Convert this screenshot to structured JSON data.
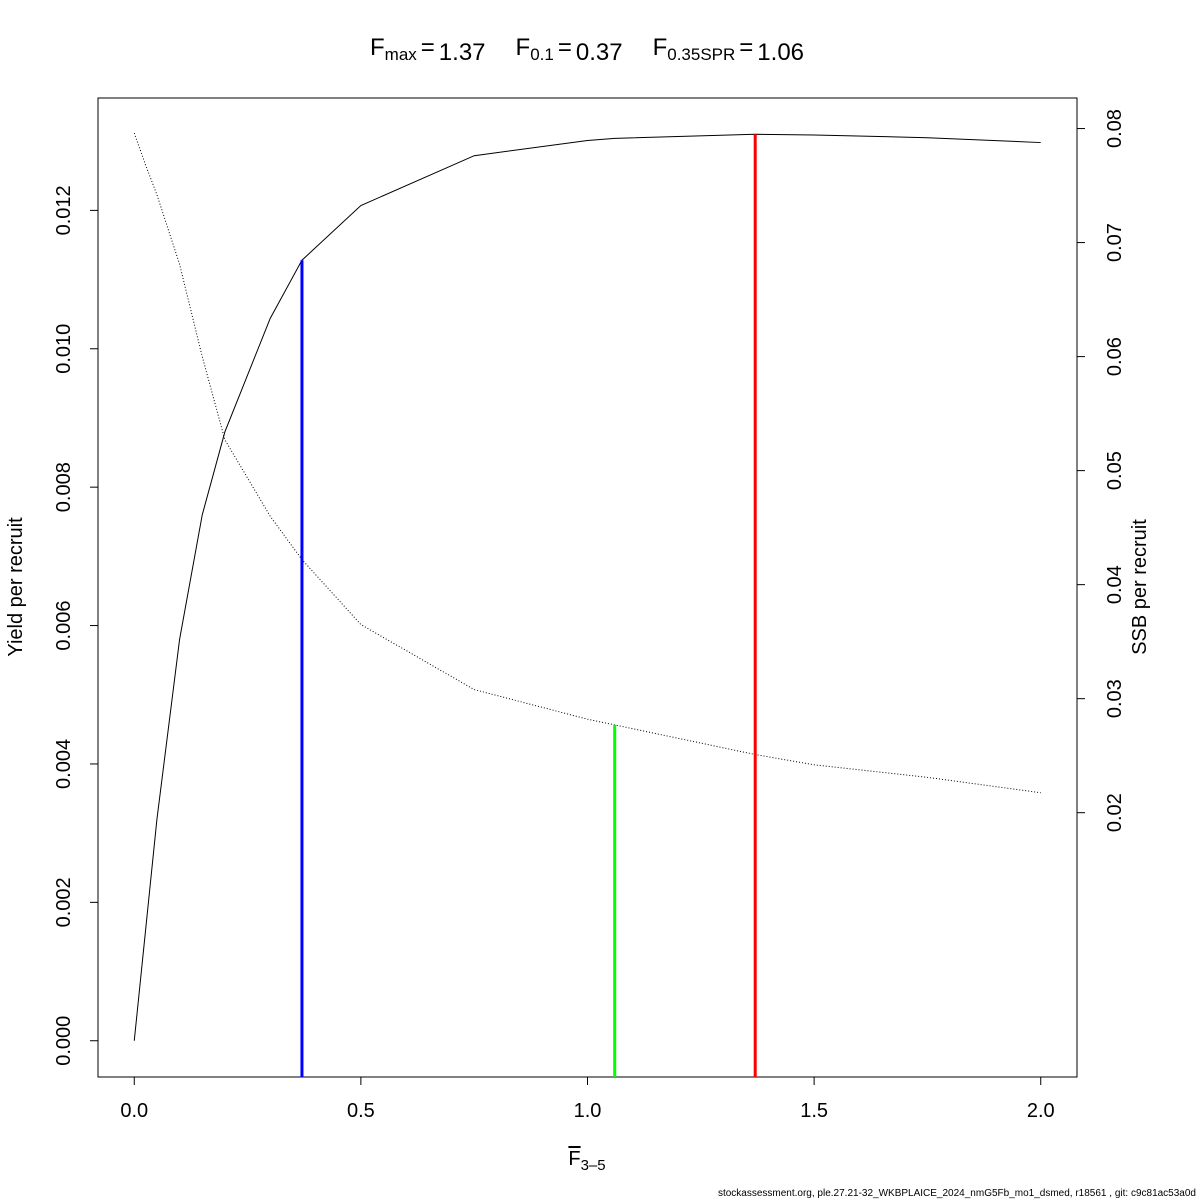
{
  "chart_data": {
    "type": "line",
    "reference_lines": [
      {
        "symbol": "F",
        "subscript": "max",
        "sign": "=",
        "x": 1.37,
        "y": 0.0131,
        "axis": "y",
        "color": "#ff0000"
      },
      {
        "symbol": "F",
        "subscript": "0.1",
        "sign": "=",
        "x": 0.37,
        "y": 0.01128,
        "axis": "y",
        "color": "#0000ff"
      },
      {
        "symbol": "F",
        "subscript": "0.35SPR",
        "sign": "=",
        "x": 1.06,
        "y": 0.0277,
        "axis": "y2",
        "color": "#00ff00"
      }
    ],
    "xlabel": {
      "text": "F",
      "subscript": "3–5"
    },
    "ylabel": "Yield per recruit",
    "y2label": "SSB per recruit",
    "x": [
      0,
      0.025,
      0.05,
      0.1,
      0.15,
      0.2,
      0.3,
      0.37,
      0.5,
      0.75,
      1.0,
      1.06,
      1.37,
      1.5,
      1.75,
      2.0
    ],
    "series": [
      {
        "name": "Yield per recruit",
        "color": "#000000",
        "dash": "solid",
        "axis": "y",
        "values": [
          0,
          0.0016,
          0.0032,
          0.0058,
          0.0076,
          0.0088,
          0.01044,
          0.01128,
          0.01207,
          0.01279,
          0.01301,
          0.01304,
          0.0131,
          0.01309,
          0.01305,
          0.01298
        ]
      },
      {
        "name": "SSB per recruit",
        "color": "#000000",
        "dash": "dotted",
        "axis": "y2",
        "values": [
          0.0796,
          0.0768,
          0.0742,
          0.0681,
          0.06,
          0.0527,
          0.046,
          0.0422,
          0.0365,
          0.0308,
          0.0282,
          0.0277,
          0.0251,
          0.0242,
          0.0231,
          0.02175
        ]
      }
    ],
    "xlim": [
      -0.08,
      2.08
    ],
    "xticks": [
      {
        "value": 0,
        "label": "0.0"
      },
      {
        "value": 0.5,
        "label": "0.5"
      },
      {
        "value": 1,
        "label": "1.0"
      },
      {
        "value": 1.5,
        "label": "1.5"
      },
      {
        "value": 2,
        "label": "2.0"
      }
    ],
    "ylim": [
      -0.000524,
      0.013624
    ],
    "yticks": [
      {
        "value": 0,
        "label": "0.000"
      },
      {
        "value": 0.002,
        "label": "0.002"
      },
      {
        "value": 0.004,
        "label": "0.004"
      },
      {
        "value": 0.006,
        "label": "0.006"
      },
      {
        "value": 0.008,
        "label": "0.008"
      },
      {
        "value": 0.01,
        "label": "0.010"
      },
      {
        "value": 0.012,
        "label": "0.012"
      }
    ],
    "y2lim": [
      -0.00318,
      0.08268
    ],
    "y2ticks": [
      {
        "value": 0.02,
        "label": "0.02"
      },
      {
        "value": 0.03,
        "label": "0.03"
      },
      {
        "value": 0.04,
        "label": "0.04"
      },
      {
        "value": 0.05,
        "label": "0.05"
      },
      {
        "value": 0.06,
        "label": "0.06"
      },
      {
        "value": 0.07,
        "label": "0.07"
      },
      {
        "value": 0.08,
        "label": "0.08"
      }
    ],
    "footer": "stockassessment.org, ple.27.21-32_WKBPLAICE_2024_nmG5Fb_mo1_dsmed, r18561 , git: c9c81ac53a0d"
  }
}
